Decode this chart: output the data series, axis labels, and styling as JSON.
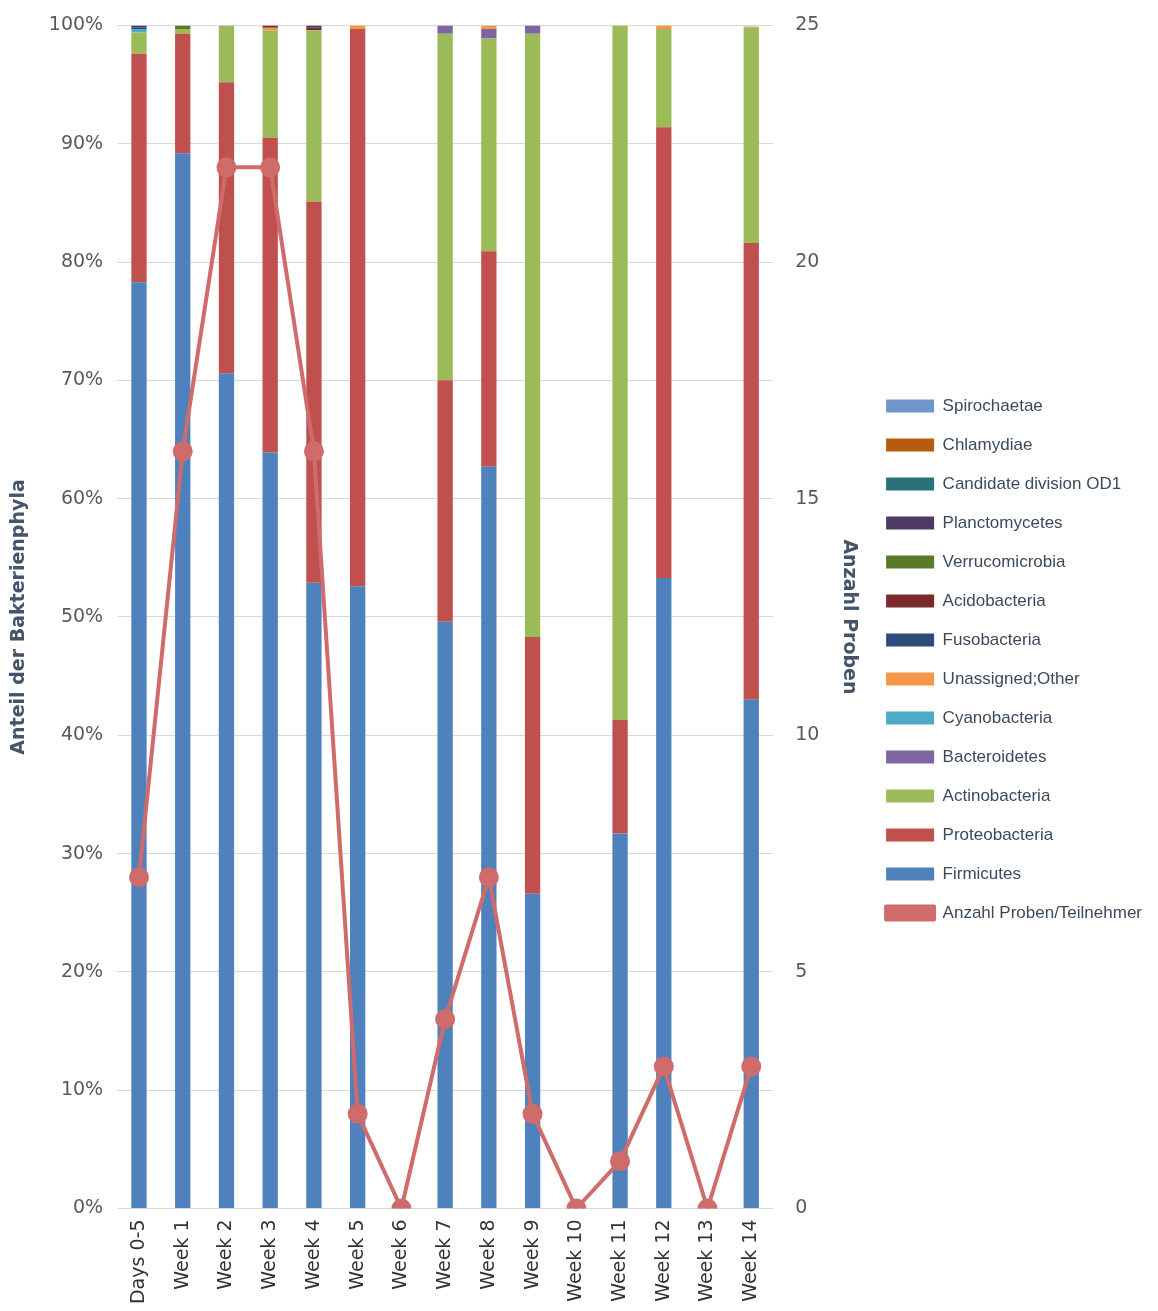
{
  "chart_data": {
    "type": "bar",
    "stacked": true,
    "categories": [
      "Days 0-5",
      "Week 1",
      "Week 2",
      "Week 3",
      "Week 4",
      "Week 5",
      "Week 6",
      "Week 7",
      "Week 8",
      "Week 9",
      "Week 10",
      "Week 11",
      "Week 12",
      "Week 13",
      "Week 14"
    ],
    "ylabel": "Anteil der Bakterienphyla",
    "y2label": "Anzahl Proben",
    "grid": "y",
    "legend": "right",
    "ylim": [
      0,
      100
    ],
    "yticks": [
      {
        "value": 0,
        "label": "0%"
      },
      {
        "value": 10,
        "label": "10%"
      },
      {
        "value": 20,
        "label": "20%"
      },
      {
        "value": 30,
        "label": "30%"
      },
      {
        "value": 40,
        "label": "40%"
      },
      {
        "value": 50,
        "label": "50%"
      },
      {
        "value": 60,
        "label": "60%"
      },
      {
        "value": 70,
        "label": "70%"
      },
      {
        "value": 80,
        "label": "80%"
      },
      {
        "value": 90,
        "label": "90%"
      },
      {
        "value": 100,
        "label": "100%"
      }
    ],
    "y2lim": [
      0,
      25
    ],
    "y2ticks": [
      0,
      5,
      10,
      15,
      20,
      25
    ],
    "series": [
      {
        "name": "Firmicutes",
        "color": "#4f81bd",
        "values": [
          78.3,
          89.2,
          70.6,
          63.9,
          52.9,
          52.6,
          null,
          49.6,
          62.7,
          26.6,
          null,
          31.7,
          53.3,
          null,
          43.0
        ]
      },
      {
        "name": "Proteobacteria",
        "color": "#c0504d",
        "values": [
          19.3,
          10.1,
          24.6,
          26.6,
          32.2,
          47.1,
          null,
          20.4,
          18.2,
          21.7,
          null,
          9.6,
          38.1,
          null,
          38.6
        ]
      },
      {
        "name": "Actinobacteria",
        "color": "#9bbb59",
        "values": [
          1.8,
          0.4,
          4.8,
          9.1,
          14.5,
          null,
          null,
          29.3,
          18.0,
          51.0,
          null,
          58.7,
          8.3,
          null,
          18.2
        ]
      },
      {
        "name": "Bacteroidetes",
        "color": "#8064a2",
        "values": [
          null,
          null,
          null,
          null,
          null,
          null,
          null,
          0.7,
          0.8,
          0.7,
          null,
          null,
          null,
          null,
          null
        ]
      },
      {
        "name": "Cyanobacteria",
        "color": "#4bacc6",
        "values": [
          0.3,
          null,
          null,
          null,
          null,
          null,
          null,
          null,
          null,
          null,
          null,
          null,
          null,
          null,
          null
        ]
      },
      {
        "name": "Unassigned;Other",
        "color": "#f79646",
        "values": [
          null,
          null,
          null,
          0.2,
          null,
          0.3,
          null,
          null,
          0.3,
          null,
          null,
          null,
          0.3,
          null,
          0.1
        ]
      },
      {
        "name": "Fusobacteria",
        "color": "#2b4c7a",
        "values": [
          0.1,
          null,
          null,
          null,
          null,
          null,
          null,
          null,
          null,
          null,
          null,
          null,
          null,
          null,
          null
        ]
      },
      {
        "name": "Acidobacteria",
        "color": "#7a2a2a",
        "values": [
          null,
          null,
          null,
          0.2,
          0.2,
          null,
          null,
          null,
          null,
          null,
          null,
          null,
          null,
          null,
          null
        ]
      },
      {
        "name": "Verrucomicrobia",
        "color": "#5a7a2a",
        "values": [
          null,
          0.3,
          null,
          null,
          null,
          null,
          null,
          null,
          null,
          null,
          null,
          null,
          null,
          null,
          null
        ]
      },
      {
        "name": "Planctomycetes",
        "color": "#4c3a63",
        "values": [
          0.2,
          null,
          null,
          null,
          0.2,
          null,
          null,
          null,
          null,
          null,
          null,
          null,
          null,
          null,
          null
        ]
      },
      {
        "name": "Candidate division OD1",
        "color": "#2a717b",
        "values": [
          null,
          null,
          null,
          null,
          null,
          null,
          null,
          null,
          null,
          null,
          null,
          null,
          null,
          null,
          null
        ]
      },
      {
        "name": "Chlamydiae",
        "color": "#b85a0d",
        "values": [
          null,
          null,
          null,
          null,
          null,
          null,
          null,
          null,
          null,
          null,
          null,
          null,
          null,
          null,
          null
        ]
      },
      {
        "name": "Spirochaetae",
        "color": "#6f95cc",
        "values": [
          null,
          null,
          null,
          null,
          null,
          null,
          null,
          null,
          null,
          null,
          null,
          null,
          null,
          null,
          null
        ]
      },
      {
        "name": "Anzahl Proben/Teilnehmer",
        "type": "line",
        "axis": "y2",
        "marker": "circle",
        "line_style": "solid",
        "color": "#d06b6b",
        "values": [
          7,
          16,
          22,
          22,
          16,
          2,
          0,
          4,
          7,
          2,
          0,
          1,
          3,
          0,
          3
        ]
      }
    ]
  }
}
